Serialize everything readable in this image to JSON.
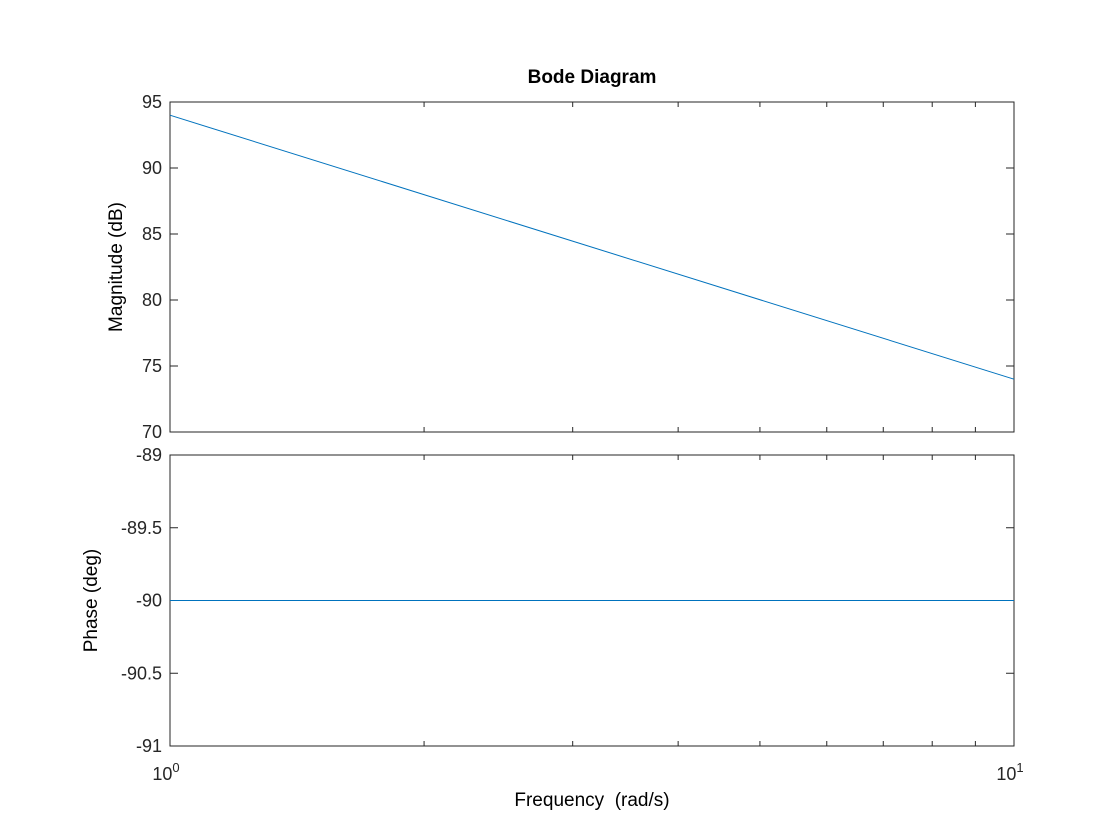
{
  "chart_data": {
    "type": "line",
    "title": "Bode Diagram",
    "xlabel": "Frequency  (rad/s)",
    "x_scale": "log",
    "xlim": [
      1,
      10
    ],
    "x_tick_labels": [
      {
        "base": "10",
        "exp": "0",
        "value": 1
      },
      {
        "base": "10",
        "exp": "1",
        "value": 10
      }
    ],
    "grid": false,
    "line_color": "#0072BD",
    "subplots": [
      {
        "name": "magnitude",
        "ylabel": "Magnitude (dB)",
        "ylim": [
          70,
          95
        ],
        "yticks": [
          70,
          75,
          80,
          85,
          90,
          95
        ],
        "ytick_labels": [
          "70",
          "75",
          "80",
          "85",
          "90",
          "95"
        ],
        "series": [
          {
            "x": [
              1,
              10
            ],
            "y": [
              94,
              74
            ]
          }
        ]
      },
      {
        "name": "phase",
        "ylabel": "Phase (deg)",
        "ylim": [
          -91,
          -89
        ],
        "yticks": [
          -91,
          -90.5,
          -90,
          -89.5,
          -89
        ],
        "ytick_labels": [
          "-91",
          "-90.5",
          "-90",
          "-89.5",
          "-89"
        ],
        "series": [
          {
            "x": [
              1,
              10
            ],
            "y": [
              -90,
              -90
            ]
          }
        ]
      }
    ]
  }
}
